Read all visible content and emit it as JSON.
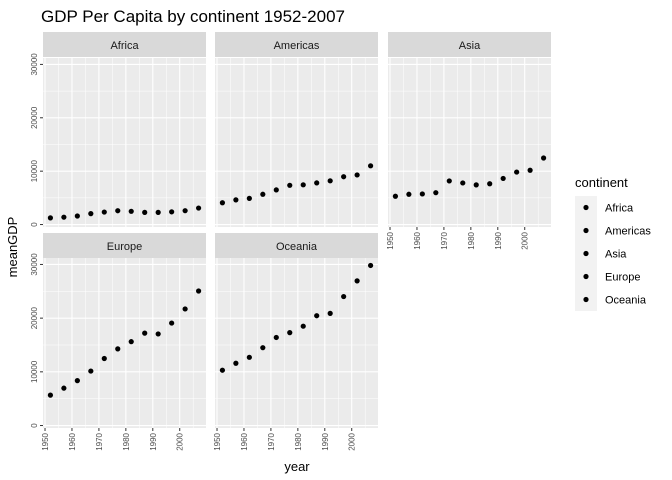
{
  "chart_data": {
    "type": "scatter",
    "title": "GDP Per Capita by continent 1952-2007",
    "xlabel": "year",
    "ylabel": "meanGDP",
    "facet_layout": "wrap 3 columns",
    "x_ticks": [
      1950,
      1960,
      1970,
      1980,
      1990,
      2000
    ],
    "y_ticks": [
      0,
      10000,
      20000,
      30000
    ],
    "x_tick_labels": [
      "1950",
      "1960",
      "1970",
      "1980",
      "1990",
      "2000"
    ],
    "y_tick_labels": [
      "0",
      "10000",
      "20000",
      "30000"
    ],
    "xlim": [
      1949.25,
      2009.75
    ],
    "ylim": [
      -460,
      31200
    ],
    "grid": true,
    "point_color": "#000000",
    "panel_background": "#ebebeb",
    "strip_background": "#d9d9d9",
    "x": [
      1952,
      1957,
      1962,
      1967,
      1972,
      1977,
      1982,
      1987,
      1992,
      1997,
      2002,
      2007
    ],
    "facets": [
      {
        "name": "Africa",
        "values": [
          1250,
          1380,
          1600,
          2050,
          2340,
          2590,
          2480,
          2280,
          2280,
          2380,
          2600,
          3090
        ]
      },
      {
        "name": "Americas",
        "values": [
          4080,
          4620,
          4900,
          5670,
          6490,
          7350,
          7440,
          7800,
          8190,
          8960,
          9290,
          11000
        ]
      },
      {
        "name": "Asia",
        "values": [
          5300,
          5670,
          5730,
          5970,
          8170,
          7790,
          7430,
          7640,
          8640,
          9830,
          10170,
          12470
        ]
      },
      {
        "name": "Europe",
        "values": [
          5660,
          6960,
          8360,
          10140,
          12480,
          14280,
          15620,
          17210,
          17060,
          19080,
          21710,
          25050
        ]
      },
      {
        "name": "Oceania",
        "values": [
          10300,
          11600,
          12700,
          14500,
          16400,
          17300,
          18500,
          20450,
          20890,
          24020,
          26940,
          29810
        ]
      }
    ],
    "legend": {
      "title": "continent",
      "position": "right",
      "entries": [
        "Africa",
        "Americas",
        "Asia",
        "Europe",
        "Oceania"
      ]
    }
  }
}
